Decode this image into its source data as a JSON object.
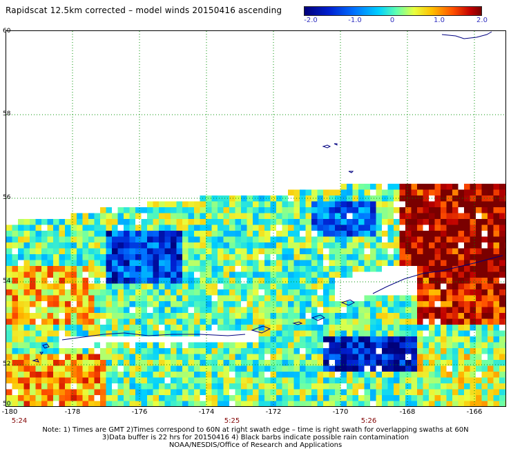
{
  "title": "Rapidscat 12.5km corrected – model winds 20150416 ascending",
  "colorbar": {
    "labels": [
      "-2.0",
      "-1.0",
      "0",
      "1.0",
      "2.0"
    ],
    "range": [
      -2.0,
      2.0
    ]
  },
  "lat_labels": [
    "60",
    "58",
    "56",
    "54",
    "52",
    "50"
  ],
  "lon_labels": [
    "-180",
    "-178",
    "-176",
    "-174",
    "-172",
    "-170",
    "-168",
    "-166"
  ],
  "time_labels": [
    "5:24",
    "5:25",
    "5:26"
  ],
  "notes": [
    "Note: 1) Times are GMT 2)Times correspond to 60N at right swath edge – time is right swath for overlapping swaths at 60N",
    "3)Data buffer is 22 hrs for 20150416 4) Black barbs indicate possible rain contamination",
    "NOAA/NESDIS/Office of Research and Applications"
  ],
  "colors": {
    "coast": "#000080",
    "grid": "#009000",
    "time_label": "#800000",
    "colorbar_label": "#3030c0"
  }
}
